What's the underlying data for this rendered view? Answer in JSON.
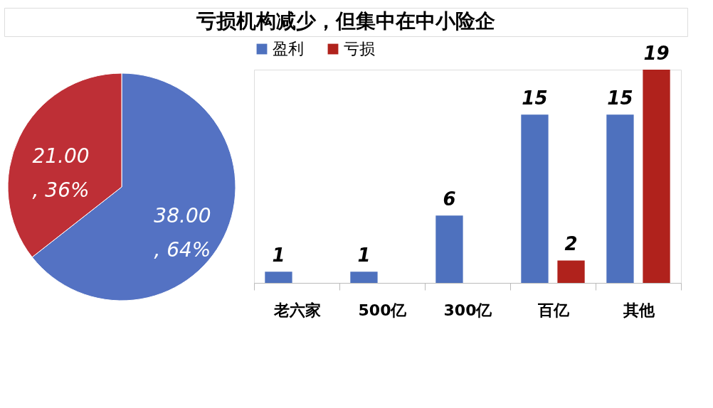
{
  "chart_data": [
    {
      "type": "other",
      "title": "亏损机构减少，但集中在中小险企"
    },
    {
      "type": "pie",
      "categories": [
        null,
        null
      ],
      "values": [
        38,
        21
      ],
      "colors": [
        "#5472c3",
        "#be2f36"
      ],
      "value_labels": [
        "38.00\n, 64%",
        "21.00\n, 36%"
      ]
    },
    {
      "type": "bar",
      "categories": [
        "老六家",
        "500亿",
        "300亿",
        "百亿",
        "其他"
      ],
      "legend": "top",
      "data_labels": true,
      "series": [
        {
          "name": "盈利",
          "color": "#4e71be",
          "values": [
            1,
            1,
            6,
            15,
            15
          ]
        },
        {
          "name": "亏损",
          "color": "#b0221c",
          "values": [
            null,
            null,
            null,
            2,
            19
          ]
        }
      ]
    }
  ]
}
